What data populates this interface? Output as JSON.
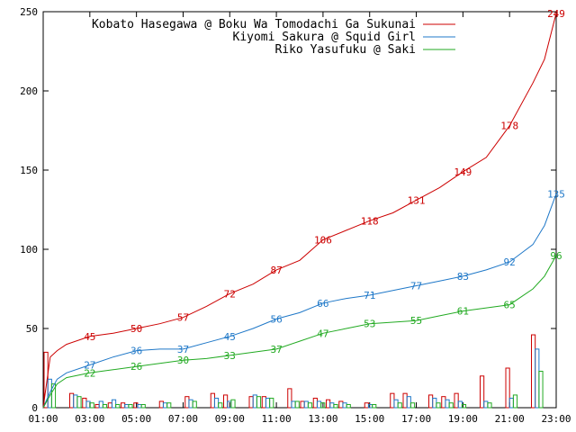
{
  "chart_data": {
    "type": "line",
    "title": "",
    "xlabel": "",
    "ylabel": "",
    "x_ticks": [
      "01:00",
      "03:00",
      "05:00",
      "07:00",
      "09:00",
      "11:00",
      "13:00",
      "15:00",
      "17:00",
      "19:00",
      "21:00",
      "23:00"
    ],
    "x_range_hours": [
      1,
      23
    ],
    "ylim": [
      0,
      250
    ],
    "y_ticks": [
      0,
      50,
      100,
      150,
      200,
      250
    ],
    "grid": false,
    "legend_position": "top-right",
    "series": [
      {
        "name": "Kobato Hasegawa @ Boku Wa Tomodachi Ga Sukunai",
        "color": "#cc0000",
        "cumulative": [
          [
            1.0,
            0
          ],
          [
            1.3,
            32
          ],
          [
            1.6,
            36
          ],
          [
            2.0,
            40
          ],
          [
            3.0,
            45
          ],
          [
            4.0,
            47
          ],
          [
            5.0,
            50
          ],
          [
            6.0,
            53
          ],
          [
            7.0,
            57
          ],
          [
            8.0,
            64
          ],
          [
            9.0,
            72
          ],
          [
            10.0,
            78
          ],
          [
            11.0,
            87
          ],
          [
            12.0,
            93
          ],
          [
            13.0,
            106
          ],
          [
            14.0,
            112
          ],
          [
            15.0,
            118
          ],
          [
            16.0,
            123
          ],
          [
            17.0,
            131
          ],
          [
            18.0,
            139
          ],
          [
            19.0,
            149
          ],
          [
            20.0,
            158
          ],
          [
            21.0,
            178
          ],
          [
            22.0,
            205
          ],
          [
            22.5,
            220
          ],
          [
            23.0,
            249
          ]
        ],
        "labels": [
          {
            "x": 3.0,
            "y": 45
          },
          {
            "x": 5.0,
            "y": 50
          },
          {
            "x": 7.0,
            "y": 57
          },
          {
            "x": 9.0,
            "y": 72
          },
          {
            "x": 11.0,
            "y": 87
          },
          {
            "x": 13.0,
            "y": 106
          },
          {
            "x": 15.0,
            "y": 118
          },
          {
            "x": 17.0,
            "y": 131
          },
          {
            "x": 19.0,
            "y": 149
          },
          {
            "x": 21.0,
            "y": 178
          },
          {
            "x": 23.0,
            "y": 249
          }
        ],
        "hourly_bars": [
          35,
          0,
          9,
          6,
          2,
          3,
          3,
          3,
          0,
          4,
          0,
          7,
          0,
          9,
          8,
          0,
          7,
          7,
          0,
          12,
          4,
          6,
          5,
          4,
          0,
          3,
          0,
          9,
          9,
          0,
          8,
          7,
          9,
          0,
          20,
          0,
          25,
          0,
          46,
          0
        ]
      },
      {
        "name": "Kiyomi Sakura @ Squid Girl",
        "color": "#1f78c8",
        "cumulative": [
          [
            1.0,
            0
          ],
          [
            1.3,
            10
          ],
          [
            1.6,
            18
          ],
          [
            2.0,
            22
          ],
          [
            3.0,
            27
          ],
          [
            4.0,
            32
          ],
          [
            5.0,
            36
          ],
          [
            6.0,
            37
          ],
          [
            7.0,
            37
          ],
          [
            8.0,
            41
          ],
          [
            9.0,
            45
          ],
          [
            10.0,
            50
          ],
          [
            11.0,
            56
          ],
          [
            12.0,
            60
          ],
          [
            13.0,
            66
          ],
          [
            14.0,
            69
          ],
          [
            15.0,
            71
          ],
          [
            16.0,
            74
          ],
          [
            17.0,
            77
          ],
          [
            18.0,
            80
          ],
          [
            19.0,
            83
          ],
          [
            20.0,
            87
          ],
          [
            21.0,
            92
          ],
          [
            22.0,
            103
          ],
          [
            22.5,
            115
          ],
          [
            23.0,
            135
          ]
        ],
        "labels": [
          {
            "x": 3.0,
            "y": 27
          },
          {
            "x": 5.0,
            "y": 36
          },
          {
            "x": 7.0,
            "y": 37
          },
          {
            "x": 9.0,
            "y": 45
          },
          {
            "x": 11.0,
            "y": 56
          },
          {
            "x": 13.0,
            "y": 66
          },
          {
            "x": 15.0,
            "y": 71
          },
          {
            "x": 17.0,
            "y": 77
          },
          {
            "x": 19.0,
            "y": 83
          },
          {
            "x": 21.0,
            "y": 92
          },
          {
            "x": 23.0,
            "y": 135
          }
        ],
        "hourly_bars": [
          18,
          0,
          8,
          4,
          4,
          5,
          2,
          2,
          0,
          3,
          0,
          5,
          0,
          6,
          4,
          0,
          8,
          6,
          0,
          4,
          4,
          4,
          3,
          3,
          0,
          2,
          0,
          5,
          7,
          0,
          6,
          5,
          4,
          0,
          4,
          0,
          6,
          0,
          37,
          0
        ]
      },
      {
        "name": "Riko Yasufuku @ Saki",
        "color": "#22aa22",
        "cumulative": [
          [
            1.0,
            0
          ],
          [
            1.3,
            8
          ],
          [
            1.6,
            15
          ],
          [
            2.0,
            19
          ],
          [
            3.0,
            22
          ],
          [
            4.0,
            24
          ],
          [
            5.0,
            26
          ],
          [
            6.0,
            28
          ],
          [
            7.0,
            30
          ],
          [
            8.0,
            31
          ],
          [
            9.0,
            33
          ],
          [
            10.0,
            35
          ],
          [
            11.0,
            37
          ],
          [
            12.0,
            42
          ],
          [
            13.0,
            47
          ],
          [
            14.0,
            50
          ],
          [
            15.0,
            53
          ],
          [
            16.0,
            54
          ],
          [
            17.0,
            55
          ],
          [
            18.0,
            58
          ],
          [
            19.0,
            61
          ],
          [
            20.0,
            63
          ],
          [
            21.0,
            65
          ],
          [
            22.0,
            75
          ],
          [
            22.5,
            83
          ],
          [
            23.0,
            96
          ]
        ],
        "labels": [
          {
            "x": 3.0,
            "y": 22
          },
          {
            "x": 5.0,
            "y": 26
          },
          {
            "x": 7.0,
            "y": 30
          },
          {
            "x": 9.0,
            "y": 33
          },
          {
            "x": 11.0,
            "y": 37
          },
          {
            "x": 13.0,
            "y": 47
          },
          {
            "x": 15.0,
            "y": 53
          },
          {
            "x": 17.0,
            "y": 55
          },
          {
            "x": 19.0,
            "y": 61
          },
          {
            "x": 21.0,
            "y": 65
          },
          {
            "x": 23.0,
            "y": 96
          }
        ],
        "hourly_bars": [
          15,
          0,
          7,
          3,
          2,
          2,
          2,
          2,
          0,
          3,
          0,
          4,
          0,
          3,
          5,
          0,
          7,
          6,
          0,
          4,
          3,
          3,
          2,
          2,
          0,
          2,
          0,
          3,
          3,
          0,
          3,
          3,
          2,
          0,
          3,
          0,
          8,
          0,
          23,
          0
        ]
      }
    ]
  }
}
